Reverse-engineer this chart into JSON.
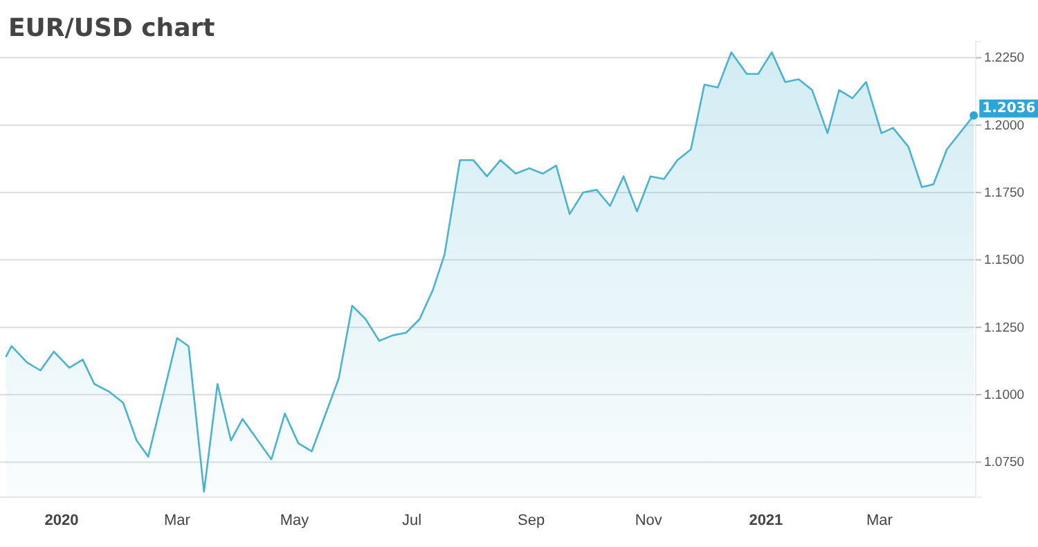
{
  "chart_data": {
    "type": "area",
    "title": "EUR/USD chart",
    "x": [
      "2019-12-03",
      "2019-12-06",
      "2019-12-14",
      "2019-12-21",
      "2019-12-28",
      "2020-01-05",
      "2020-01-12",
      "2020-01-18",
      "2020-01-26",
      "2020-02-02",
      "2020-02-09",
      "2020-02-15",
      "2020-03-01",
      "2020-03-07",
      "2020-03-15",
      "2020-03-22",
      "2020-03-29",
      "2020-04-04",
      "2020-04-19",
      "2020-04-26",
      "2020-05-03",
      "2020-05-10",
      "2020-05-24",
      "2020-05-31",
      "2020-06-07",
      "2020-06-14",
      "2020-06-21",
      "2020-06-28",
      "2020-07-05",
      "2020-07-12",
      "2020-07-18",
      "2020-07-26",
      "2020-08-02",
      "2020-08-09",
      "2020-08-16",
      "2020-08-24",
      "2020-08-31",
      "2020-09-07",
      "2020-09-14",
      "2020-09-21",
      "2020-09-28",
      "2020-10-05",
      "2020-10-12",
      "2020-10-19",
      "2020-10-26",
      "2020-11-02",
      "2020-11-09",
      "2020-11-16",
      "2020-11-23",
      "2020-11-30",
      "2020-12-07",
      "2020-12-14",
      "2020-12-22",
      "2020-12-28",
      "2021-01-04",
      "2021-01-11",
      "2021-01-18",
      "2021-01-25",
      "2021-02-02",
      "2021-02-08",
      "2021-02-15",
      "2021-02-22",
      "2021-03-02",
      "2021-03-08",
      "2021-03-16",
      "2021-03-23",
      "2021-03-29",
      "2021-04-05",
      "2021-04-19"
    ],
    "series": [
      {
        "color": "#4ab3cf",
        "values": [
          1.114,
          1.118,
          1.112,
          1.109,
          1.116,
          1.11,
          1.113,
          1.104,
          1.101,
          1.097,
          1.083,
          1.077,
          1.121,
          1.118,
          1.064,
          1.104,
          1.083,
          1.091,
          1.076,
          1.093,
          1.082,
          1.079,
          1.106,
          1.133,
          1.128,
          1.12,
          1.122,
          1.123,
          1.128,
          1.139,
          1.152,
          1.187,
          1.187,
          1.181,
          1.187,
          1.182,
          1.184,
          1.182,
          1.185,
          1.167,
          1.175,
          1.176,
          1.17,
          1.181,
          1.168,
          1.181,
          1.18,
          1.187,
          1.191,
          1.215,
          1.214,
          1.227,
          1.219,
          1.219,
          1.227,
          1.216,
          1.217,
          1.213,
          1.197,
          1.213,
          1.21,
          1.216,
          1.197,
          1.199,
          1.192,
          1.177,
          1.178,
          1.191,
          1.2036
        ]
      }
    ],
    "xlim": [
      "2019-11-30",
      "2021-04-20"
    ],
    "xticks": [
      {
        "value": "2020-01-01",
        "label": "2020"
      },
      {
        "value": "2020-03-01",
        "label": "Mar"
      },
      {
        "value": "2020-05-01",
        "label": "May"
      },
      {
        "value": "2020-07-01",
        "label": "Jul"
      },
      {
        "value": "2020-09-01",
        "label": "Sep"
      },
      {
        "value": "2020-11-01",
        "label": "Nov"
      },
      {
        "value": "2021-01-01",
        "label": "2021"
      },
      {
        "value": "2021-03-01",
        "label": "Mar"
      }
    ],
    "ylim": [
      1.062,
      1.231
    ],
    "yticks": [
      {
        "value": 1.075,
        "label": "1.0750"
      },
      {
        "value": 1.1,
        "label": "1.1000"
      },
      {
        "value": 1.125,
        "label": "1.1250"
      },
      {
        "value": 1.15,
        "label": "1.1500"
      },
      {
        "value": 1.175,
        "label": "1.1750"
      },
      {
        "value": 1.2,
        "label": "1.2000"
      },
      {
        "value": 1.225,
        "label": "1.2250"
      }
    ],
    "grid": "y",
    "annotations": [
      {
        "text": "1.2036",
        "x": "2021-04-19",
        "y": 1.2036
      }
    ]
  }
}
